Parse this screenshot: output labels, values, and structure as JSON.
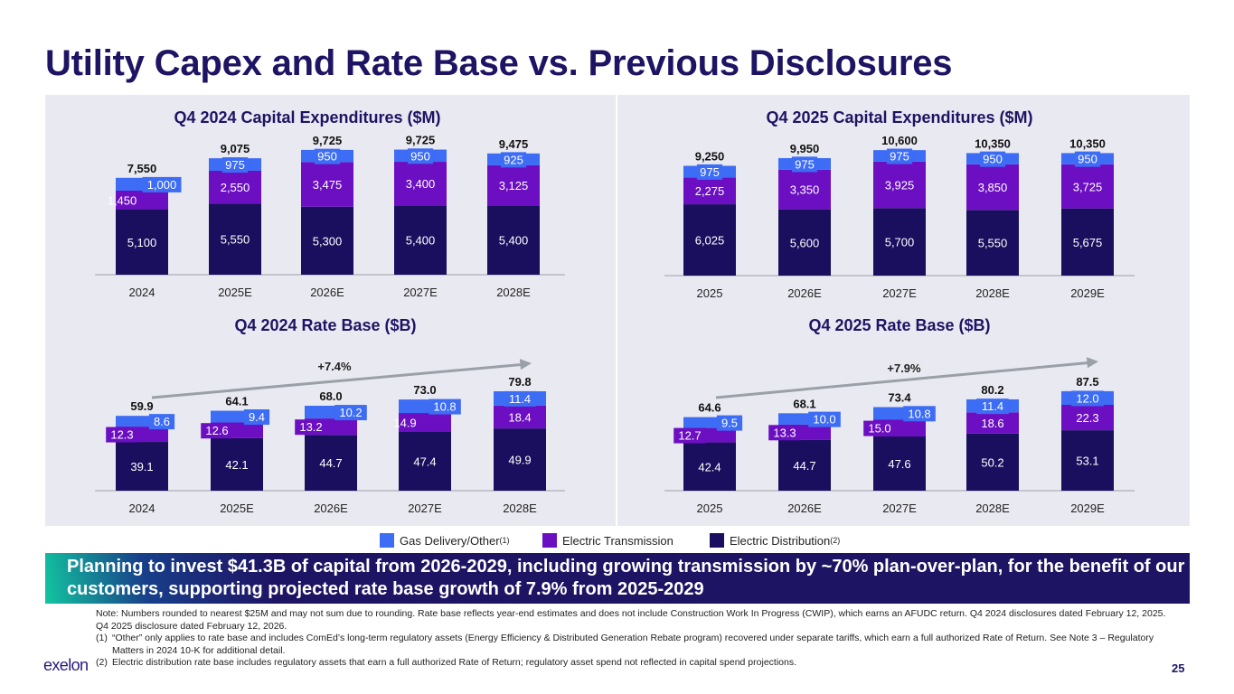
{
  "title": "Utility Capex and Rate Base vs. Previous Disclosures",
  "colors": {
    "gas_other": "#3d6cf5",
    "transmission": "#6c0fc2",
    "distribution": "#1a0f5e",
    "title": "#1e1464",
    "panel": "#e9e9f1"
  },
  "legend": {
    "items": [
      {
        "label": "Gas Delivery/Other",
        "sup": "(1)",
        "color": "#3d6cf5"
      },
      {
        "label": "Electric Transmission",
        "sup": "",
        "color": "#6c0fc2"
      },
      {
        "label": "Electric Distribution",
        "sup": "(2)",
        "color": "#1a0f5e"
      }
    ]
  },
  "chart_data": [
    {
      "type": "bar",
      "stacked": true,
      "title": "Q4 2024 Capital Expenditures ($M)",
      "categories": [
        "2024",
        "2025E",
        "2026E",
        "2027E",
        "2028E"
      ],
      "series": [
        {
          "name": "Electric Distribution",
          "values": [
            "5,100",
            "5,550",
            "5,300",
            "5,400",
            "5,400"
          ]
        },
        {
          "name": "Electric Transmission",
          "values": [
            "1,450",
            "2,550",
            "3,475",
            "3,400",
            "3,125"
          ]
        },
        {
          "name": "Gas Delivery/Other",
          "values": [
            "1,000",
            "975",
            "950",
            "950",
            "925"
          ]
        }
      ],
      "totals": [
        "7,550",
        "9,075",
        "9,725",
        "9,725",
        "9,475"
      ]
    },
    {
      "type": "bar",
      "stacked": true,
      "title": "Q4 2025 Capital Expenditures ($M)",
      "categories": [
        "2025",
        "2026E",
        "2027E",
        "2028E",
        "2029E"
      ],
      "series": [
        {
          "name": "Electric Distribution",
          "values": [
            "6,025",
            "5,600",
            "5,700",
            "5,550",
            "5,675"
          ]
        },
        {
          "name": "Electric Transmission",
          "values": [
            "2,275",
            "3,350",
            "3,925",
            "3,850",
            "3,725"
          ]
        },
        {
          "name": "Gas Delivery/Other",
          "values": [
            "975",
            "975",
            "975",
            "950",
            "950"
          ]
        }
      ],
      "totals": [
        "9,250",
        "9,950",
        "10,600",
        "10,350",
        "10,350"
      ]
    },
    {
      "type": "bar",
      "stacked": true,
      "title": "Q4 2024 Rate Base ($B)",
      "categories": [
        "2024",
        "2025E",
        "2026E",
        "2027E",
        "2028E"
      ],
      "series": [
        {
          "name": "Electric Distribution",
          "values": [
            "39.1",
            "42.1",
            "44.7",
            "47.4",
            "49.9"
          ]
        },
        {
          "name": "Electric Transmission",
          "values": [
            "12.3",
            "12.6",
            "13.2",
            "14.9",
            "18.4"
          ]
        },
        {
          "name": "Gas Delivery/Other",
          "values": [
            "8.6",
            "9.4",
            "10.2",
            "10.8",
            "11.4"
          ]
        }
      ],
      "totals": [
        "59.9",
        "64.1",
        "68.0",
        "73.0",
        "79.8"
      ],
      "growth_label": "+7.4%"
    },
    {
      "type": "bar",
      "stacked": true,
      "title": "Q4 2025 Rate Base ($B)",
      "categories": [
        "2025",
        "2026E",
        "2027E",
        "2028E",
        "2029E"
      ],
      "series": [
        {
          "name": "Electric Distribution",
          "values": [
            "42.4",
            "44.7",
            "47.6",
            "50.2",
            "53.1"
          ]
        },
        {
          "name": "Electric Transmission",
          "values": [
            "12.7",
            "13.3",
            "15.0",
            "18.6",
            "22.3"
          ]
        },
        {
          "name": "Gas Delivery/Other",
          "values": [
            "9.5",
            "10.0",
            "10.8",
            "11.4",
            "12.0"
          ]
        }
      ],
      "totals": [
        "64.6",
        "68.1",
        "73.4",
        "80.2",
        "87.5"
      ],
      "growth_label": "+7.9%"
    }
  ],
  "banner": "Planning to invest $41.3B of capital from 2026-2029, including growing transmission by ~70% plan-over-plan, for the benefit of our customers, supporting projected rate base growth of 7.9% from 2025-2029",
  "notes": {
    "main": "Note: Numbers rounded to nearest $25M and may not sum due to rounding. Rate base reflects year-end estimates and does not include Construction Work In Progress (CWIP), which earns an AFUDC return. Q4 2024 disclosures dated February 12, 2025. Q4 2025 disclosure dated February 12, 2026.",
    "fn1_num": "(1)",
    "fn1": "“Other” only applies to rate base and includes ComEd’s long-term regulatory assets (Energy Efficiency & Distributed Generation Rebate program) recovered under separate tariffs, which earn a full authorized Rate of Return. See Note 3 – Regulatory Matters in 2024 10-K for additional detail.",
    "fn2_num": "(2)",
    "fn2": "Electric distribution rate base includes regulatory assets that earn a full authorized Rate of Return; regulatory asset spend not reflected in capital spend projections."
  },
  "logo": "exelon",
  "page_number": "25"
}
